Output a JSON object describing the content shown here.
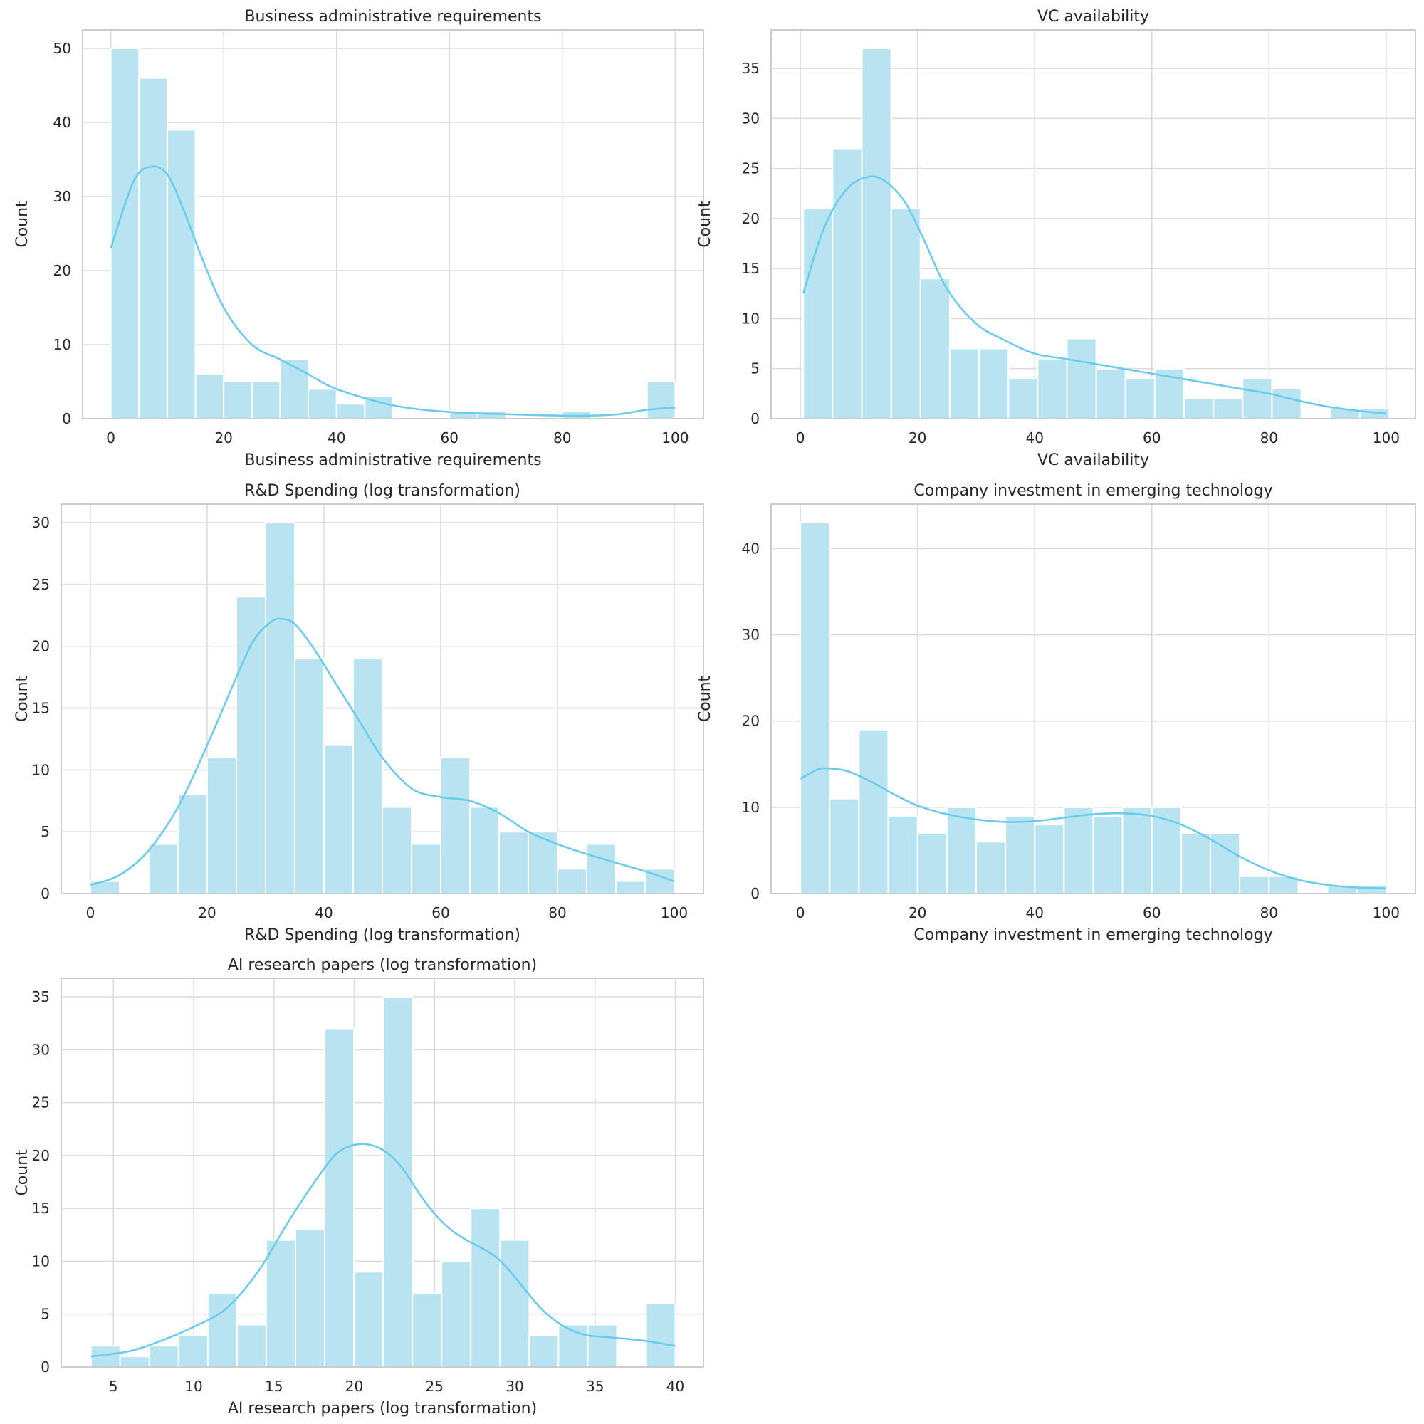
{
  "colors": {
    "bar_fill": "#b8e4f2",
    "bar_edge": "#ffffff",
    "kde_line": "#6ccbea",
    "grid": "#dcdcdc",
    "spine": "#cccccc",
    "text": "#262626"
  },
  "chart_data": [
    {
      "type": "bar",
      "title": "Business administrative requirements",
      "xlabel": "Business administrative requirements",
      "ylabel": "Count",
      "xlim": [
        -5,
        105
      ],
      "ylim": [
        0,
        52.5
      ],
      "xticks": [
        0,
        20,
        40,
        60,
        80,
        100
      ],
      "yticks": [
        0,
        10,
        20,
        30,
        40,
        50
      ],
      "grid": true,
      "bins": {
        "start": 0,
        "width": 5,
        "counts": [
          50,
          46,
          39,
          6,
          5,
          5,
          8,
          4,
          2,
          3,
          0,
          0,
          1,
          1,
          0,
          0,
          1,
          0,
          0,
          5
        ]
      },
      "kde": {
        "x": [
          0,
          4,
          7,
          10,
          13,
          16,
          20,
          25,
          30,
          35,
          40,
          50,
          60,
          70,
          80,
          85,
          90,
          95,
          100
        ],
        "y": [
          23,
          32,
          34,
          33,
          28,
          22,
          15,
          10,
          8,
          6,
          4,
          1.8,
          0.9,
          0.6,
          0.4,
          0.4,
          0.6,
          1.2,
          1.5
        ]
      }
    },
    {
      "type": "bar",
      "title": "VC availability",
      "xlabel": "VC availability",
      "ylabel": "Count",
      "xlim": [
        -5,
        105
      ],
      "ylim": [
        0,
        38.85
      ],
      "xticks": [
        0,
        20,
        40,
        60,
        80,
        100
      ],
      "yticks": [
        0,
        5,
        10,
        15,
        20,
        25,
        30,
        35
      ],
      "grid": true,
      "bins": {
        "start": 0.5,
        "width": 5,
        "counts": [
          21,
          27,
          37,
          21,
          14,
          7,
          7,
          4,
          6,
          8,
          5,
          4,
          5,
          2,
          2,
          4,
          3,
          0,
          1,
          1
        ]
      },
      "kde": {
        "x": [
          0.5,
          4,
          8,
          12,
          15,
          18,
          21,
          25,
          30,
          35,
          40,
          45,
          50,
          55,
          60,
          65,
          70,
          75,
          80,
          85,
          90,
          95,
          100
        ],
        "y": [
          12.5,
          19,
          23,
          24.2,
          23.5,
          21.5,
          18,
          13,
          9.5,
          7.8,
          6.5,
          6,
          5.5,
          5,
          4.5,
          4,
          3.5,
          3,
          2.5,
          1.8,
          1.2,
          0.8,
          0.5
        ]
      }
    },
    {
      "type": "bar",
      "title": "R&D Spending (log transformation)",
      "xlabel": "R&D Spending (log transformation)",
      "ylabel": "Count",
      "xlim": [
        -5,
        105
      ],
      "ylim": [
        0,
        31.5
      ],
      "xticks": [
        0,
        20,
        40,
        60,
        80,
        100
      ],
      "yticks": [
        0,
        5,
        10,
        15,
        20,
        25,
        30
      ],
      "grid": true,
      "bins": {
        "start": 0,
        "width": 5,
        "counts": [
          1,
          0,
          4,
          8,
          11,
          24,
          30,
          19,
          12,
          19,
          7,
          4,
          11,
          7,
          5,
          5,
          2,
          4,
          1,
          2
        ]
      },
      "kde": {
        "x": [
          0,
          5,
          10,
          15,
          20,
          25,
          28,
          31,
          33,
          35,
          38,
          42,
          46,
          50,
          55,
          60,
          65,
          70,
          75,
          80,
          85,
          90,
          95,
          100
        ],
        "y": [
          0.7,
          1.5,
          3.5,
          7,
          12,
          17.5,
          20.5,
          22,
          22.2,
          21.8,
          20,
          17,
          14,
          11,
          8.5,
          7.8,
          7.5,
          6.5,
          5,
          4,
          3.2,
          2.5,
          1.8,
          1
        ]
      }
    },
    {
      "type": "bar",
      "title": "Company investment in emerging technology",
      "xlabel": "Company investment in emerging technology",
      "ylabel": "Count",
      "xlim": [
        -5,
        105
      ],
      "ylim": [
        0,
        45.15
      ],
      "xticks": [
        0,
        20,
        40,
        60,
        80,
        100
      ],
      "yticks": [
        0,
        10,
        20,
        30,
        40
      ],
      "grid": true,
      "bins": {
        "start": 0,
        "width": 5,
        "counts": [
          43,
          11,
          19,
          9,
          7,
          10,
          6,
          9,
          8,
          10,
          9,
          10,
          10,
          7,
          7,
          2,
          2,
          0,
          1,
          1
        ]
      },
      "kde": {
        "x": [
          0,
          3,
          5,
          8,
          12,
          16,
          20,
          25,
          30,
          35,
          40,
          45,
          50,
          55,
          60,
          65,
          70,
          75,
          80,
          85,
          90,
          95,
          100
        ],
        "y": [
          13.3,
          14.4,
          14.5,
          14.2,
          13,
          11.5,
          10.2,
          9.2,
          8.6,
          8.3,
          8.4,
          8.8,
          9.2,
          9.3,
          9,
          8,
          6.3,
          4.3,
          2.7,
          1.6,
          1,
          0.7,
          0.6
        ]
      }
    },
    {
      "type": "bar",
      "title": "AI research papers (log transformation)",
      "xlabel": "AI research papers (log transformation)",
      "ylabel": "Count",
      "xlim": [
        1.75,
        41.75
      ],
      "ylim": [
        0,
        36.75
      ],
      "xticks": [
        5,
        10,
        15,
        20,
        25,
        30,
        35,
        40
      ],
      "yticks": [
        0,
        5,
        10,
        15,
        20,
        25,
        30,
        35
      ],
      "grid": true,
      "bins": {
        "start": 3.6,
        "width": 1.82,
        "counts": [
          2,
          1,
          2,
          3,
          7,
          4,
          12,
          13,
          32,
          9,
          35,
          7,
          10,
          15,
          12,
          3,
          4,
          4,
          0,
          6
        ]
      },
      "kde": {
        "x": [
          3.6,
          6,
          8,
          10,
          12,
          14,
          16,
          18,
          19,
          20,
          21,
          22,
          23,
          24,
          25,
          26,
          27,
          28,
          29,
          30,
          32,
          34,
          36,
          38,
          40
        ],
        "y": [
          1,
          1.5,
          2.5,
          3.8,
          5.5,
          9,
          14,
          18.5,
          20.3,
          21,
          21,
          20.3,
          18.8,
          16.5,
          14.5,
          13,
          12,
          11.2,
          10.2,
          8.5,
          5,
          3.2,
          2.8,
          2.5,
          2
        ]
      }
    }
  ]
}
